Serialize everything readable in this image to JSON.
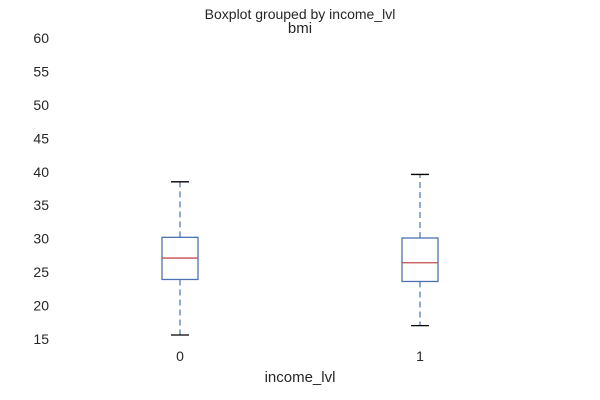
{
  "chart_data": {
    "type": "boxplot",
    "suptitle": "Boxplot grouped by income_lvl",
    "title": "bmi",
    "xlabel": "income_lvl",
    "ylabel": "",
    "ylim": [
      15,
      60
    ],
    "yticks": [
      15,
      20,
      25,
      30,
      35,
      40,
      45,
      50,
      55,
      60
    ],
    "categories": [
      "0",
      "1"
    ],
    "boxes": [
      {
        "category": "0",
        "whisker_low": 15.6,
        "q1": 23.9,
        "median": 27.1,
        "q3": 30.2,
        "whisker_high": 38.5
      },
      {
        "category": "1",
        "whisker_low": 17.0,
        "q1": 23.6,
        "median": 26.4,
        "q3": 30.1,
        "whisker_high": 39.6
      }
    ],
    "grid": false,
    "colors": {
      "box": "#4c72b0",
      "median": "#c44e52",
      "cap": "#000000",
      "text": "#262626"
    }
  }
}
